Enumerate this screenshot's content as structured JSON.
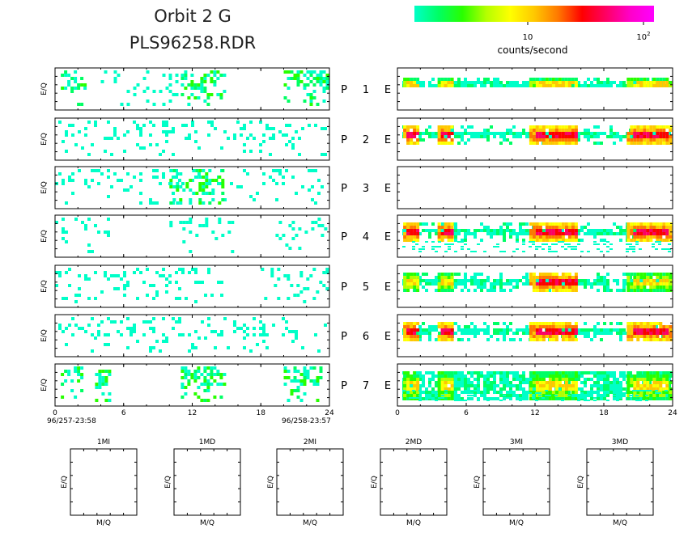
{
  "title": {
    "line1": "Orbit 2 G",
    "line2": "PLS96258.RDR"
  },
  "colorbar": {
    "label": "counts/second",
    "tick_10": "10",
    "tick_100_base": "10",
    "tick_100_exp": "2",
    "colors": [
      "#00ffc8",
      "#00ff64",
      "#28ff00",
      "#b4ff00",
      "#ffff00",
      "#ffc800",
      "#ff7800",
      "#ff0000",
      "#ff0064",
      "#ff00c8",
      "#ff00ff"
    ]
  },
  "time_axis": {
    "ticks": [
      "0",
      "6",
      "12",
      "18",
      "24"
    ],
    "start_label": "96/257-23:58",
    "end_label": "96/258-23:57"
  },
  "ylabel": "E/Q",
  "row_labels": [
    {
      "p": "P",
      "n": "1",
      "e": "E"
    },
    {
      "p": "P",
      "n": "2",
      "e": "E"
    },
    {
      "p": "P",
      "n": "3",
      "e": "E"
    },
    {
      "p": "P",
      "n": "4",
      "e": "E"
    },
    {
      "p": "P",
      "n": "5",
      "e": "E"
    },
    {
      "p": "P",
      "n": "6",
      "e": "E"
    },
    {
      "p": "P",
      "n": "7",
      "e": "E"
    }
  ],
  "small_panels": [
    {
      "title": "1MI",
      "xlabel": "M/Q",
      "ylabel": "E/Q"
    },
    {
      "title": "1MD",
      "xlabel": "M/Q",
      "ylabel": "E/Q"
    },
    {
      "title": "2MI",
      "xlabel": "M/Q",
      "ylabel": "E/Q"
    },
    {
      "title": "2MD",
      "xlabel": "M/Q",
      "ylabel": "E/Q"
    },
    {
      "title": "3MI",
      "xlabel": "M/Q",
      "ylabel": "E/Q"
    },
    {
      "title": "3MD",
      "xlabel": "M/Q",
      "ylabel": "E/Q"
    }
  ],
  "chart_data": {
    "type": "heatmap",
    "x_unit": "hours",
    "xlim": [
      0,
      24
    ],
    "color_scale": "log counts/second",
    "left_panels": [
      {
        "sensor": "P1",
        "activity": [
          [
            0.5,
            3,
            "low"
          ],
          [
            4,
            11,
            "sparse"
          ],
          [
            11,
            15,
            "low"
          ],
          [
            20,
            24,
            "low"
          ]
        ]
      },
      {
        "sensor": "P2",
        "activity": [
          [
            0,
            24,
            "sparse"
          ]
        ]
      },
      {
        "sensor": "P3",
        "activity": [
          [
            0,
            24,
            "sparse"
          ],
          [
            10,
            15,
            "low"
          ]
        ]
      },
      {
        "sensor": "P4",
        "activity": [
          [
            0,
            5,
            "sparse"
          ],
          [
            10,
            16,
            "sparse"
          ],
          [
            19,
            24,
            "sparse"
          ]
        ]
      },
      {
        "sensor": "P5",
        "activity": [
          [
            0,
            15,
            "sparse"
          ],
          [
            18,
            24,
            "sparse"
          ]
        ]
      },
      {
        "sensor": "P6",
        "activity": [
          [
            0,
            24,
            "sparse"
          ]
        ]
      },
      {
        "sensor": "P7",
        "activity": [
          [
            0.5,
            2.5,
            "low"
          ],
          [
            3.5,
            5,
            "low"
          ],
          [
            11,
            15,
            "low"
          ],
          [
            20,
            23.5,
            "low"
          ]
        ]
      }
    ],
    "right_panels": [
      {
        "sensor": "E1",
        "hot": [
          [
            0.5,
            2,
            "med"
          ],
          [
            3.5,
            5,
            "med"
          ],
          [
            11.5,
            16,
            "med"
          ],
          [
            20,
            24,
            "med"
          ]
        ],
        "band": "thin"
      },
      {
        "sensor": "E2",
        "hot": [
          [
            0.5,
            2,
            "high"
          ],
          [
            3.5,
            5,
            "high"
          ],
          [
            11.5,
            16,
            "high"
          ],
          [
            20,
            24,
            "high"
          ]
        ],
        "band": "wide"
      },
      {
        "sensor": "E3",
        "hot": [],
        "band": "none"
      },
      {
        "sensor": "E4",
        "hot": [
          [
            0.5,
            2,
            "high"
          ],
          [
            3.5,
            5,
            "high"
          ],
          [
            11.5,
            16,
            "high"
          ],
          [
            20,
            24,
            "high"
          ]
        ],
        "band": "wide"
      },
      {
        "sensor": "E5",
        "hot": [
          [
            0.5,
            2,
            "med"
          ],
          [
            3.5,
            5,
            "med"
          ],
          [
            11.5,
            16,
            "high"
          ],
          [
            20,
            24,
            "med"
          ]
        ],
        "band": "wide"
      },
      {
        "sensor": "E6",
        "hot": [
          [
            0.5,
            2,
            "high"
          ],
          [
            3.5,
            5,
            "high"
          ],
          [
            11.5,
            16,
            "high"
          ],
          [
            20,
            24,
            "high"
          ]
        ],
        "band": "wide"
      },
      {
        "sensor": "E7",
        "hot": [
          [
            0.5,
            2,
            "med"
          ],
          [
            3.5,
            5,
            "med"
          ],
          [
            11.5,
            16,
            "med"
          ],
          [
            20,
            24,
            "med"
          ]
        ],
        "band": "full"
      }
    ]
  }
}
